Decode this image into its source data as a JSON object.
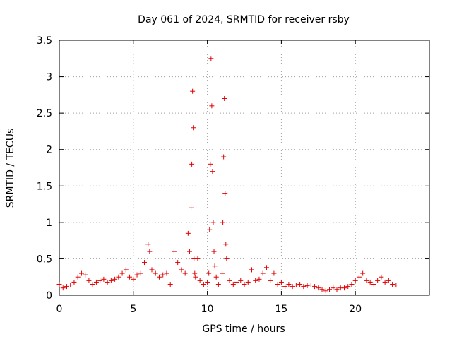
{
  "chart_data": {
    "type": "scatter",
    "title": "Day 061 of 2024, SRMTID for receiver rsby",
    "xlabel": "GPS time / hours",
    "ylabel": "SRMTID / TECUs",
    "xlim": [
      0,
      25
    ],
    "ylim": [
      0,
      3.5
    ],
    "xticks": [
      0,
      5,
      10,
      15,
      20
    ],
    "xtick_labels": [
      "0",
      "5",
      "10",
      "15",
      "20"
    ],
    "yticks": [
      0,
      0.5,
      1,
      1.5,
      2,
      2.5,
      3,
      3.5
    ],
    "ytick_labels": [
      "0",
      "0.5",
      "1",
      "1.5",
      "2",
      "2.5",
      "3",
      "3.5"
    ],
    "grid": true,
    "marker": "+",
    "series": [
      {
        "name": "SRMTID",
        "color": "#e00000",
        "x": [
          0.0,
          0.25,
          0.5,
          0.75,
          1.0,
          1.25,
          1.5,
          1.75,
          2.0,
          2.25,
          2.5,
          2.75,
          3.0,
          3.25,
          3.5,
          3.75,
          4.0,
          4.25,
          4.5,
          4.75,
          5.0,
          5.25,
          5.5,
          5.75,
          6.0,
          6.1,
          6.25,
          6.5,
          6.75,
          7.0,
          7.25,
          7.5,
          7.75,
          8.0,
          8.25,
          8.5,
          8.7,
          8.8,
          8.9,
          8.95,
          9.0,
          9.05,
          9.1,
          9.15,
          9.2,
          9.35,
          9.5,
          9.75,
          10.0,
          10.1,
          10.15,
          10.2,
          10.25,
          10.3,
          10.35,
          10.4,
          10.45,
          10.5,
          10.6,
          10.75,
          11.0,
          11.05,
          11.1,
          11.15,
          11.2,
          11.25,
          11.3,
          11.5,
          11.75,
          12.0,
          12.25,
          12.5,
          12.75,
          13.0,
          13.25,
          13.5,
          13.75,
          14.0,
          14.25,
          14.5,
          14.75,
          15.0,
          15.25,
          15.5,
          15.75,
          16.0,
          16.25,
          16.5,
          16.75,
          17.0,
          17.25,
          17.5,
          17.75,
          18.0,
          18.25,
          18.5,
          18.75,
          19.0,
          19.25,
          19.5,
          19.75,
          20.0,
          20.25,
          20.5,
          20.75,
          21.0,
          21.25,
          21.5,
          21.75,
          22.0,
          22.25,
          22.5,
          22.75
        ],
        "y": [
          0.15,
          0.1,
          0.12,
          0.14,
          0.18,
          0.25,
          0.3,
          0.28,
          0.2,
          0.15,
          0.18,
          0.2,
          0.22,
          0.18,
          0.2,
          0.22,
          0.25,
          0.3,
          0.35,
          0.25,
          0.22,
          0.28,
          0.3,
          0.45,
          0.7,
          0.6,
          0.35,
          0.3,
          0.25,
          0.28,
          0.3,
          0.15,
          0.6,
          0.45,
          0.35,
          0.3,
          0.85,
          0.6,
          1.2,
          1.8,
          2.8,
          2.3,
          0.5,
          0.3,
          0.25,
          0.5,
          0.2,
          0.15,
          0.18,
          0.3,
          0.9,
          1.8,
          3.25,
          2.6,
          1.7,
          1.0,
          0.6,
          0.4,
          0.25,
          0.15,
          0.3,
          1.0,
          1.9,
          2.7,
          1.4,
          0.7,
          0.5,
          0.2,
          0.15,
          0.18,
          0.2,
          0.15,
          0.18,
          0.35,
          0.2,
          0.22,
          0.3,
          0.38,
          0.2,
          0.3,
          0.15,
          0.18,
          0.12,
          0.15,
          0.12,
          0.14,
          0.15,
          0.12,
          0.13,
          0.14,
          0.12,
          0.1,
          0.08,
          0.06,
          0.08,
          0.1,
          0.08,
          0.1,
          0.1,
          0.12,
          0.15,
          0.2,
          0.25,
          0.3,
          0.2,
          0.18,
          0.15,
          0.2,
          0.25,
          0.18,
          0.2,
          0.15,
          0.14
        ]
      }
    ]
  }
}
